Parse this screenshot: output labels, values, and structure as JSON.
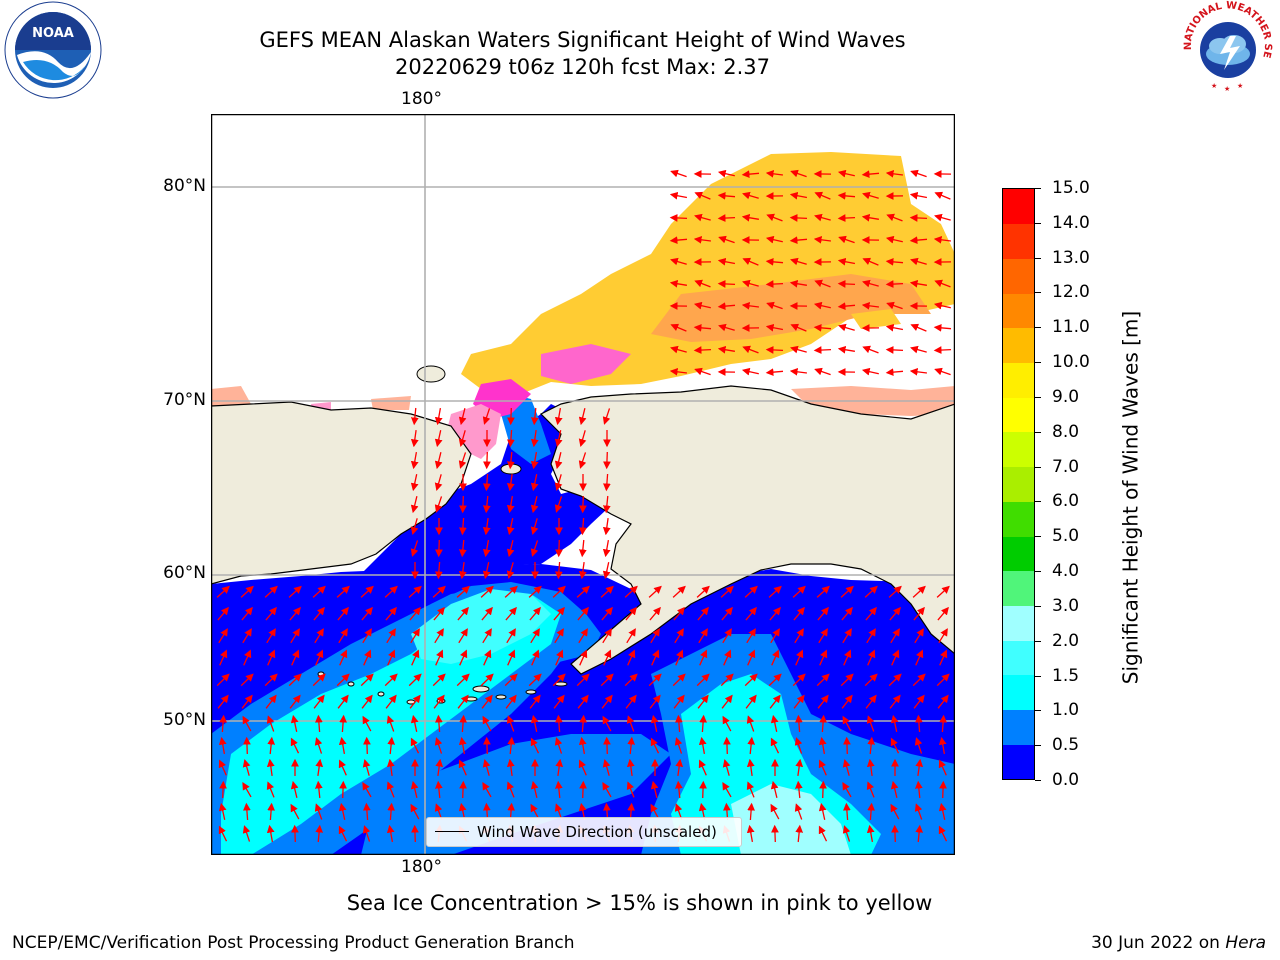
{
  "title": {
    "line1": "GEFS MEAN Alaskan Waters Significant Height of Wind Waves",
    "line2": "20220629 t06z 120h fcst   Max: 2.37"
  },
  "map": {
    "lon_label_top": "180°",
    "lon_label_bottom": "180°",
    "lat_labels": [
      "80°N",
      "70°N",
      "60°N",
      "50°N"
    ],
    "land_color": "#efecdc",
    "ocean_low_color": "#0000ff",
    "vector_color": "#ff0000",
    "legend_label": "Wind Wave Direction (unscaled)"
  },
  "colorbar": {
    "title": "Significant Height of Wind Waves [m]",
    "ticks": [
      "0.0",
      "0.5",
      "1.0",
      "1.5",
      "2.0",
      "3.0",
      "4.0",
      "5.0",
      "6.0",
      "7.0",
      "8.0",
      "9.0",
      "10.0",
      "11.0",
      "12.0",
      "13.0",
      "14.0",
      "15.0"
    ],
    "colors": [
      "#0000ff",
      "#0080ff",
      "#00ffff",
      "#40ffff",
      "#a0ffff",
      "#50f57a",
      "#00cc00",
      "#40dd00",
      "#aaee00",
      "#ccff00",
      "#ffff00",
      "#ffee00",
      "#ffbb00",
      "#ff8800",
      "#ff6600",
      "#ff3300",
      "#ff0000"
    ]
  },
  "caption": "Sea Ice Concentration > 15% is shown in pink to yellow",
  "footer": {
    "left": "NCEP/EMC/Verification Post Processing Product Generation Branch",
    "right_prefix": "30 Jun 2022 on ",
    "right_host": "Hera"
  },
  "logos": {
    "noaa_text": "NOAA",
    "nws_text": "NATIONAL WEATHER SERVICE"
  }
}
